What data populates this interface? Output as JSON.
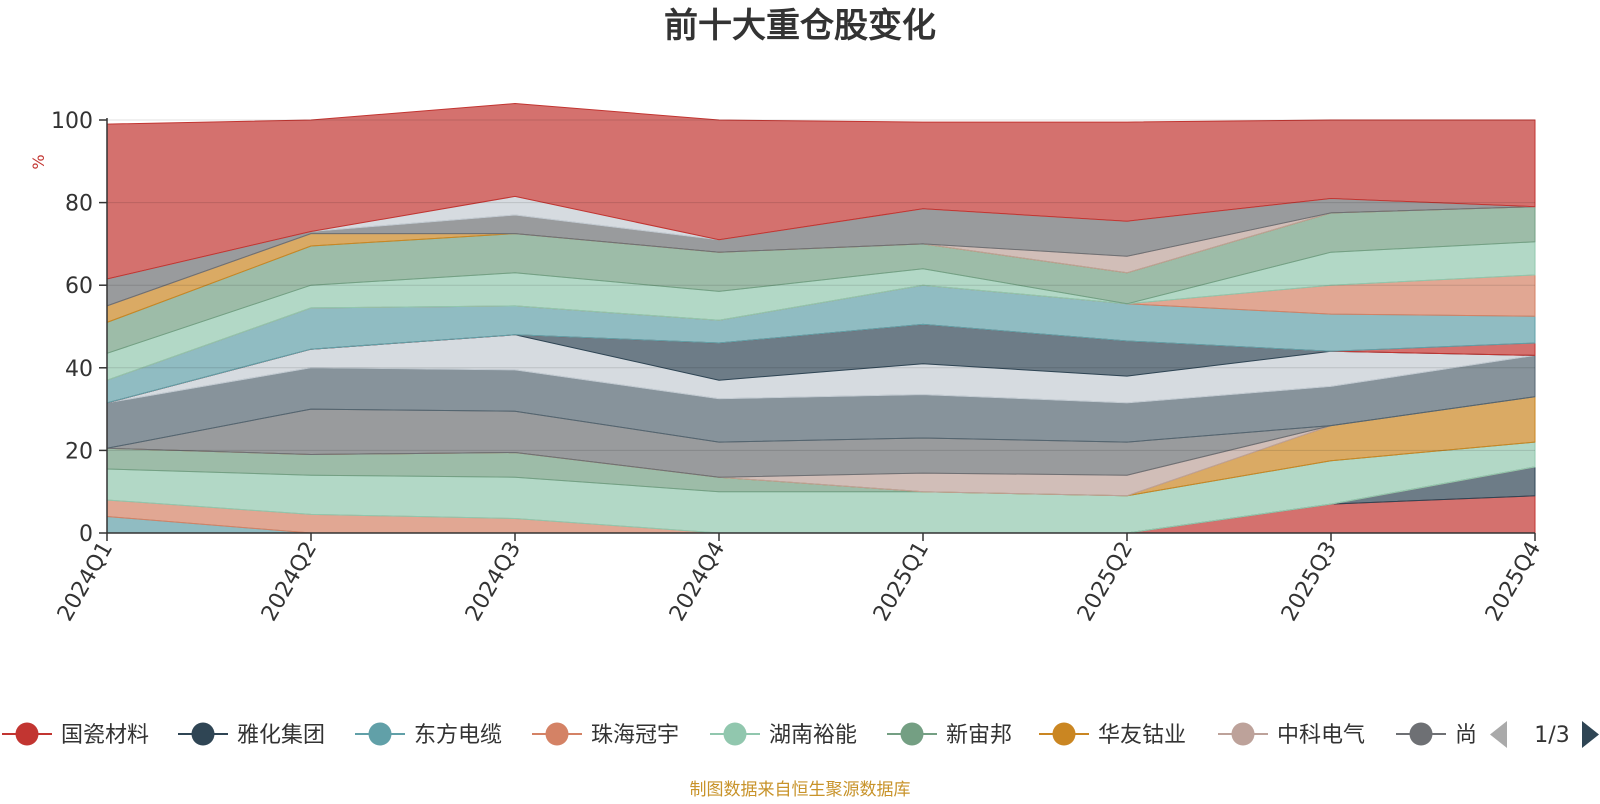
{
  "chart_data": {
    "type": "area",
    "title": "前十大重仓股变化",
    "ylabel": "%",
    "source_note": "制图数据来自恒生聚源数据库",
    "ylim": [
      0,
      100
    ],
    "yticks": [
      "0",
      "20",
      "40",
      "60",
      "80",
      "100"
    ],
    "categories": [
      "2024Q1",
      "2024Q2",
      "2024Q3",
      "2024Q4",
      "2025Q1",
      "2025Q2",
      "2025Q3",
      "2025Q4"
    ],
    "grid": true,
    "stacked": true,
    "legend_position": "bottom",
    "legend_page": "1/3",
    "legend_visible_count": 9,
    "series": [
      {
        "name": "国瓷材料",
        "color": "#c23531",
        "values": [
          0,
          0,
          0,
          0,
          0,
          0,
          7,
          9
        ]
      },
      {
        "name": "雅化集团",
        "color": "#2f4554",
        "values": [
          0,
          0,
          0,
          0,
          0,
          0,
          0,
          7
        ]
      },
      {
        "name": "东方电缆",
        "color": "#61a0a8",
        "values": [
          4,
          0,
          0,
          0,
          0,
          0,
          0,
          0
        ]
      },
      {
        "name": "珠海冠宇",
        "color": "#d48265",
        "values": [
          4,
          4.5,
          3.5,
          0,
          0,
          0,
          0,
          0
        ]
      },
      {
        "name": "湖南裕能",
        "color": "#91c7ae",
        "values": [
          7.5,
          9.5,
          10,
          10,
          10,
          9,
          10.5,
          6
        ]
      },
      {
        "name": "新宙邦",
        "color": "#749f83",
        "values": [
          5,
          5,
          6,
          3.5,
          0,
          0,
          0,
          0
        ]
      },
      {
        "name": "华友钴业",
        "color": "#ca8622",
        "values": [
          0,
          0,
          0,
          0,
          0,
          0,
          8.5,
          11
        ]
      },
      {
        "name": "中科电气",
        "color": "#bda29a",
        "values": [
          0,
          0,
          0,
          0,
          4.5,
          5,
          0,
          0
        ]
      },
      {
        "name": "尚",
        "color": "#6e7074",
        "values": [
          0,
          11,
          10,
          8.5,
          8.5,
          8,
          0,
          0
        ]
      },
      {
        "name": "",
        "color": "#546570",
        "values": [
          11,
          10,
          10,
          10.5,
          10.5,
          9.5,
          9.5,
          10
        ]
      },
      {
        "name": "",
        "color": "#c4ccd3",
        "values": [
          0,
          4.5,
          8.5,
          4.5,
          7.5,
          6.5,
          8.5,
          0
        ]
      },
      {
        "name": "",
        "color": "#2f4554",
        "values": [
          0,
          0,
          0,
          9,
          9.5,
          8.5,
          0,
          0
        ]
      },
      {
        "name": "",
        "color": "#c23531",
        "values": [
          0,
          0,
          0,
          0,
          0,
          0,
          0,
          3
        ]
      },
      {
        "name": "",
        "color": "#61a0a8",
        "values": [
          5.5,
          10,
          7,
          5.5,
          9.5,
          9,
          9,
          6.5
        ]
      },
      {
        "name": "",
        "color": "#d48265",
        "values": [
          0,
          0,
          0,
          0,
          0,
          0,
          7,
          10
        ]
      },
      {
        "name": "",
        "color": "#91c7ae",
        "values": [
          6.5,
          5.5,
          8,
          7,
          4,
          0,
          8,
          8
        ]
      },
      {
        "name": "",
        "color": "#749f83",
        "values": [
          7.5,
          9.5,
          9.5,
          9.5,
          6,
          7.5,
          9.5,
          8.5
        ]
      },
      {
        "name": "",
        "color": "#ca8622",
        "values": [
          4,
          3,
          0,
          0,
          0,
          0,
          0,
          0
        ]
      },
      {
        "name": "",
        "color": "#bda29a",
        "values": [
          0,
          0,
          0,
          0,
          0,
          4,
          0,
          0
        ]
      },
      {
        "name": "",
        "color": "#6e7074",
        "values": [
          6.5,
          0.5,
          4.5,
          3,
          8.5,
          8.5,
          3.5,
          0
        ]
      },
      {
        "name": "",
        "color": "#c4ccd3",
        "values": [
          0,
          0,
          4.5,
          0,
          0,
          0,
          0,
          0
        ]
      },
      {
        "name": "",
        "color": "#c23531",
        "values": [
          37.5,
          27,
          22.5,
          29,
          21,
          24,
          19,
          21
        ]
      }
    ]
  }
}
